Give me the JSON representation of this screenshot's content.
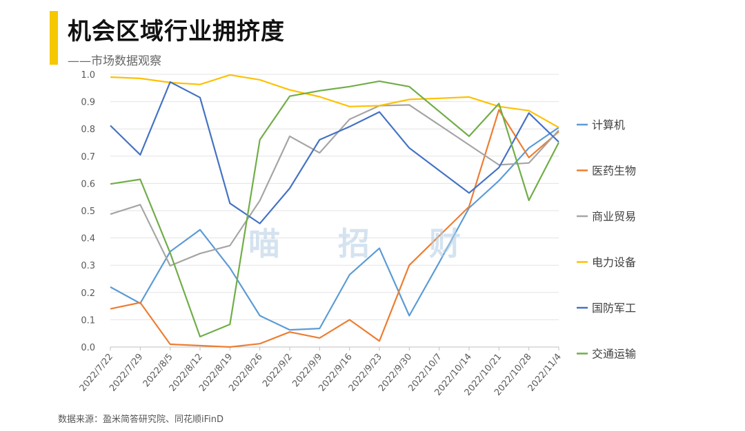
{
  "header": {
    "title": "机会区域行业拥挤度",
    "subtitle": "——市场数据观察"
  },
  "footer": {
    "source": "数据来源：盈米简答研究院、同花顺iFinD"
  },
  "watermark": [
    "喵",
    "招",
    "财"
  ],
  "colors": {
    "accent": "#f5c800"
  },
  "chart_data": {
    "type": "line",
    "categories": [
      "2022/7/22",
      "2022/7/29",
      "2022/8/5",
      "2022/8/12",
      "2022/8/19",
      "2022/8/26",
      "2022/9/2",
      "2022/9/9",
      "2022/9/16",
      "2022/9/23",
      "2022/9/30",
      "2022/10/7",
      "2022/10/14",
      "2022/10/21",
      "2022/10/28",
      "2022/11/4"
    ],
    "ylim": [
      0,
      1.0
    ],
    "yticks": [
      "0.0",
      "0.1",
      "0.2",
      "0.3",
      "0.4",
      "0.5",
      "0.6",
      "0.7",
      "0.8",
      "0.9",
      "1.0"
    ],
    "grid": true,
    "legend_position": "right",
    "series": [
      {
        "name": "计算机",
        "color": "#5b9bd5",
        "values": [
          0.22,
          0.16,
          0.35,
          0.43,
          0.29,
          0.115,
          0.063,
          0.068,
          0.265,
          0.362,
          0.115,
          0.31,
          0.51,
          0.61,
          0.73,
          0.805
        ]
      },
      {
        "name": "医药生物",
        "color": "#ed7d31",
        "values": [
          0.14,
          0.163,
          0.01,
          0.005,
          0.0,
          0.012,
          0.055,
          0.033,
          0.1,
          0.022,
          0.3,
          null,
          0.515,
          0.87,
          0.695,
          0.79
        ]
      },
      {
        "name": "商业贸易",
        "color": "#a5a5a5",
        "values": [
          0.487,
          0.522,
          0.298,
          0.343,
          0.372,
          0.537,
          0.773,
          0.712,
          0.835,
          0.885,
          0.888,
          null,
          null,
          0.668,
          0.675,
          0.795
        ]
      },
      {
        "name": "电力设备",
        "color": "#ffc000",
        "values": [
          0.99,
          0.985,
          0.97,
          0.963,
          0.998,
          0.98,
          0.943,
          0.918,
          0.882,
          0.885,
          0.908,
          0.912,
          0.917,
          0.882,
          0.867,
          0.805
        ]
      },
      {
        "name": "国防军工",
        "color": "#4472c4",
        "values": [
          0.812,
          0.705,
          0.972,
          0.915,
          0.527,
          0.453,
          0.582,
          0.76,
          0.808,
          0.862,
          0.73,
          null,
          0.565,
          0.658,
          0.858,
          0.752
        ]
      },
      {
        "name": "交通运输",
        "color": "#70ad47",
        "values": [
          0.598,
          0.615,
          0.345,
          0.038,
          0.083,
          0.76,
          0.92,
          0.94,
          0.955,
          0.975,
          0.955,
          null,
          0.773,
          0.893,
          0.538,
          0.75
        ]
      }
    ]
  }
}
